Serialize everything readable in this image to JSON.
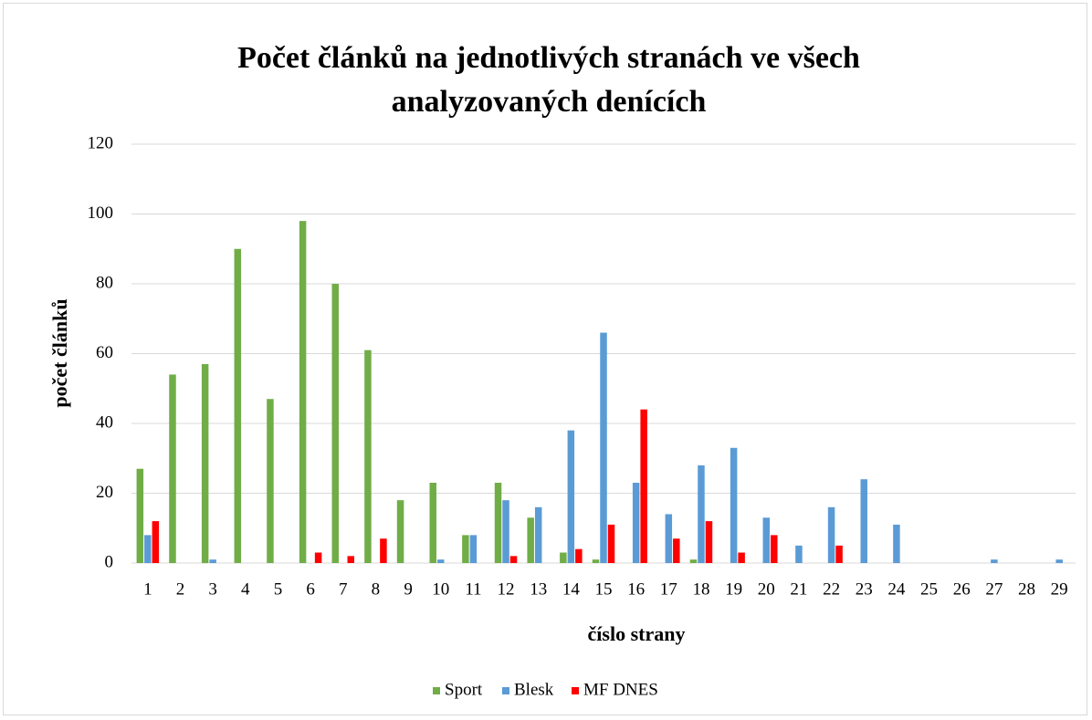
{
  "chart_data": {
    "type": "bar",
    "title": "Počet článků na jednotlivých stranách ve všech analyzovaných denících",
    "x_label": "číslo strany",
    "y_label": "počet článků",
    "categories": [
      "1",
      "2",
      "3",
      "4",
      "5",
      "6",
      "7",
      "8",
      "9",
      "10",
      "11",
      "12",
      "13",
      "14",
      "15",
      "16",
      "17",
      "18",
      "19",
      "20",
      "21",
      "22",
      "23",
      "24",
      "25",
      "26",
      "27",
      "28",
      "29"
    ],
    "series": [
      {
        "name": "Sport",
        "color": "#70ad47",
        "values": [
          27,
          54,
          57,
          90,
          47,
          98,
          80,
          61,
          18,
          23,
          8,
          23,
          13,
          3,
          1,
          0,
          0,
          1,
          0,
          0,
          0,
          0,
          0,
          0,
          0,
          0,
          0,
          0,
          0
        ]
      },
      {
        "name": "Blesk",
        "color": "#5b9bd5",
        "values": [
          8,
          0,
          1,
          0,
          0,
          0,
          0,
          0,
          0,
          1,
          8,
          18,
          16,
          38,
          66,
          23,
          14,
          28,
          33,
          13,
          5,
          16,
          24,
          11,
          0,
          0,
          1,
          0,
          1
        ]
      },
      {
        "name": "MF DNES",
        "color": "#ff0000",
        "values": [
          12,
          0,
          0,
          0,
          0,
          3,
          2,
          7,
          0,
          0,
          0,
          2,
          0,
          4,
          11,
          44,
          7,
          12,
          3,
          8,
          0,
          5,
          0,
          0,
          0,
          0,
          0,
          0,
          0
        ]
      }
    ],
    "ylim": [
      0,
      120
    ],
    "yticks": [
      0,
      20,
      40,
      60,
      80,
      100,
      120
    ],
    "grid": true,
    "legend": "bottom"
  }
}
